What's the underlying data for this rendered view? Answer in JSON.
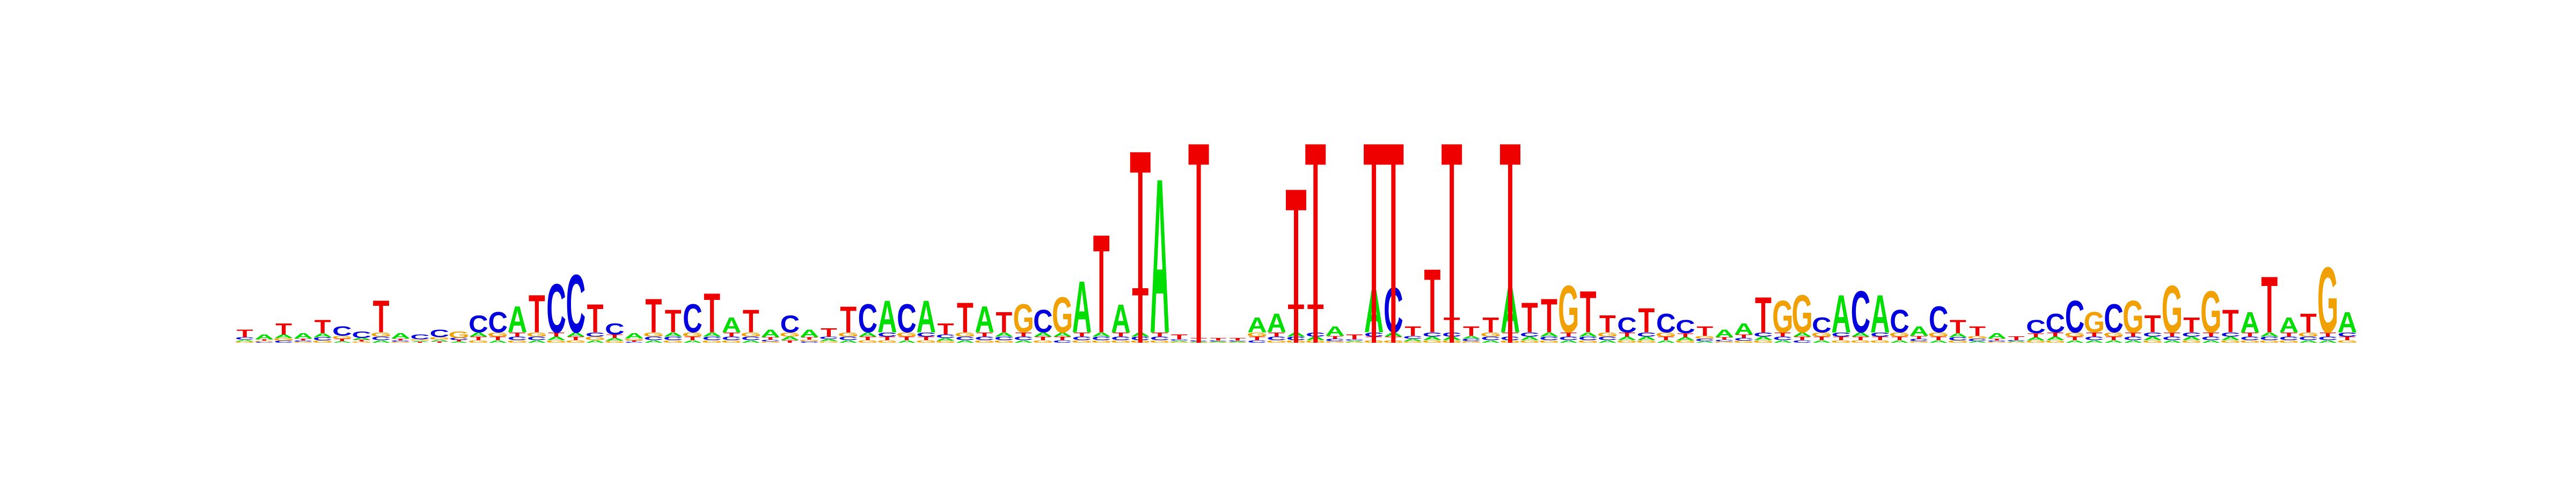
{
  "figure": {
    "type": "sequence-logo",
    "alphabet": [
      "A",
      "C",
      "G",
      "T"
    ],
    "colors": {
      "A": "#00dd00",
      "C": "#0000dd",
      "G": "#f0a000",
      "T": "#ee0000"
    },
    "lollipop_color": "#ee0000",
    "title": "",
    "xlabel": "",
    "ylabel": ""
  },
  "logo": {
    "positions": [
      {
        "bases": "GATC",
        "dominant": "T",
        "height": 0.08
      },
      {
        "bases": "ACGT",
        "dominant": "A",
        "height": 0.05
      },
      {
        "bases": "CGTA",
        "dominant": "T",
        "height": 0.12
      },
      {
        "bases": "AGCT",
        "dominant": "A",
        "height": 0.06
      },
      {
        "bases": "GCAT",
        "dominant": "T",
        "height": 0.14
      },
      {
        "bases": "ATGC",
        "dominant": "C",
        "height": 0.1
      },
      {
        "bases": "GTAC",
        "dominant": "C",
        "height": 0.07
      },
      {
        "bases": "ACGT",
        "dominant": "T",
        "height": 0.34
      },
      {
        "bases": "GACT",
        "dominant": "A",
        "height": 0.06
      },
      {
        "bases": "CTAG",
        "dominant": "C",
        "height": 0.05
      },
      {
        "bases": "TAGC",
        "dominant": "C",
        "height": 0.08
      },
      {
        "bases": "ATCG",
        "dominant": "G",
        "height": 0.07
      },
      {
        "bases": "GTAC",
        "dominant": "C",
        "height": 0.18
      },
      {
        "bases": "ATGC",
        "dominant": "C",
        "height": 0.22
      },
      {
        "bases": "GACT",
        "dominant": "A",
        "height": 0.28
      },
      {
        "bases": "ACGT",
        "dominant": "T",
        "height": 0.4
      },
      {
        "bases": "GATC",
        "dominant": "C",
        "height": 0.52
      },
      {
        "bases": "GTAC",
        "dominant": "C",
        "height": 0.62
      },
      {
        "bases": "ATGC",
        "dominant": "T",
        "height": 0.3
      },
      {
        "bases": "GACT",
        "dominant": "C",
        "height": 0.12
      },
      {
        "bases": "CTGA",
        "dominant": "A",
        "height": 0.06
      },
      {
        "bases": "ACGT",
        "dominant": "T",
        "height": 0.36
      },
      {
        "bases": "GCAT",
        "dominant": "T",
        "height": 0.24
      },
      {
        "bases": "ATGC",
        "dominant": "C",
        "height": 0.3
      },
      {
        "bases": "GCAT",
        "dominant": "T",
        "height": 0.42
      },
      {
        "bases": "GACT",
        "dominant": "A",
        "height": 0.16
      },
      {
        "bases": "ACGT",
        "dominant": "T",
        "height": 0.24
      },
      {
        "bases": "GCTA",
        "dominant": "A",
        "height": 0.08
      },
      {
        "bases": "TAGC",
        "dominant": "C",
        "height": 0.18
      },
      {
        "bases": "ACGT",
        "dominant": "A",
        "height": 0.08
      },
      {
        "bases": "GACT",
        "dominant": "T",
        "height": 0.09
      },
      {
        "bases": "ACGT",
        "dominant": "T",
        "height": 0.28
      },
      {
        "bases": "GTAC",
        "dominant": "C",
        "height": 0.3
      },
      {
        "bases": "GTCA",
        "dominant": "A",
        "height": 0.34
      },
      {
        "bases": "ATGC",
        "dominant": "C",
        "height": 0.3
      },
      {
        "bases": "GTCA",
        "dominant": "A",
        "height": 0.34
      },
      {
        "bases": "GACT",
        "dominant": "T",
        "height": 0.12
      },
      {
        "bases": "ACGT",
        "dominant": "T",
        "height": 0.32
      },
      {
        "bases": "GCTA",
        "dominant": "A",
        "height": 0.28
      },
      {
        "bases": "GCAT",
        "dominant": "T",
        "height": 0.22
      },
      {
        "bases": "AGCT",
        "dominant": "G",
        "height": 0.3
      },
      {
        "bases": "GTAC",
        "dominant": "C",
        "height": 0.24
      },
      {
        "bases": "CTGA",
        "dominant": "G",
        "height": 0.38
      },
      {
        "bases": "GCTA",
        "dominant": "A",
        "height": 0.55
      },
      {
        "bases": "GCAT",
        "dominant": "T",
        "height": 1.05
      },
      {
        "bases": "GCTA",
        "dominant": "A",
        "height": 0.3
      },
      {
        "bases": "GCAT",
        "dominant": "T",
        "height": 0.48
      },
      {
        "bases": "GCTA",
        "dominant": "A",
        "height": 1.65
      },
      {
        "bases": "GACT",
        "dominant": "T",
        "height": 0.05
      },
      {
        "bases": "GACT",
        "dominant": "T",
        "height": 0.03
      },
      {
        "bases": "GACT",
        "dominant": "T",
        "height": 0.03
      },
      {
        "bases": "GACT",
        "dominant": "T",
        "height": 0.03
      },
      {
        "bases": "CTGA",
        "dominant": "A",
        "height": 0.16
      },
      {
        "bases": "GCTA",
        "dominant": "A",
        "height": 0.2
      },
      {
        "bases": "GCAT",
        "dominant": "T",
        "height": 0.3
      },
      {
        "bases": "GACT",
        "dominant": "T",
        "height": 0.3
      },
      {
        "bases": "GCTA",
        "dominant": "A",
        "height": 0.1
      },
      {
        "bases": "GACT",
        "dominant": "T",
        "height": 0.05
      },
      {
        "bases": "GTCA",
        "dominant": "A",
        "height": 0.46
      },
      {
        "bases": "GTAC",
        "dominant": "C",
        "height": 0.48
      },
      {
        "bases": "GACT",
        "dominant": "T",
        "height": 0.1
      },
      {
        "bases": "GACT",
        "dominant": "T",
        "height": 0.68
      },
      {
        "bases": "GACT",
        "dominant": "T",
        "height": 0.16
      },
      {
        "bases": "GCAT",
        "dominant": "T",
        "height": 0.1
      },
      {
        "bases": "ACGT",
        "dominant": "T",
        "height": 0.16
      },
      {
        "bases": "GCTA",
        "dominant": "A",
        "height": 0.48
      },
      {
        "bases": "GACT",
        "dominant": "T",
        "height": 0.32
      },
      {
        "bases": "GCAT",
        "dominant": "T",
        "height": 0.36
      },
      {
        "bases": "ACTG",
        "dominant": "G",
        "height": 0.5
      },
      {
        "bases": "GCAT",
        "dominant": "T",
        "height": 0.44
      },
      {
        "bases": "ACGT",
        "dominant": "T",
        "height": 0.18
      },
      {
        "bases": "GATC",
        "dominant": "C",
        "height": 0.16
      },
      {
        "bases": "GACT",
        "dominant": "T",
        "height": 0.26
      },
      {
        "bases": "ATGC",
        "dominant": "C",
        "height": 0.2
      },
      {
        "bases": "GATC",
        "dominant": "C",
        "height": 0.14
      },
      {
        "bases": "ACGT",
        "dominant": "T",
        "height": 0.1
      },
      {
        "bases": "GCTA",
        "dominant": "A",
        "height": 0.08
      },
      {
        "bases": "GCTA",
        "dominant": "A",
        "height": 0.12
      },
      {
        "bases": "GACT",
        "dominant": "T",
        "height": 0.38
      },
      {
        "bases": "ACTG",
        "dominant": "G",
        "height": 0.34
      },
      {
        "bases": "CTAG",
        "dominant": "G",
        "height": 0.4
      },
      {
        "bases": "ATGC",
        "dominant": "C",
        "height": 0.16
      },
      {
        "bases": "GTCA",
        "dominant": "A",
        "height": 0.4
      },
      {
        "bases": "GTAC",
        "dominant": "C",
        "height": 0.44
      },
      {
        "bases": "GTCA",
        "dominant": "A",
        "height": 0.4
      },
      {
        "bases": "ATGC",
        "dominant": "C",
        "height": 0.24
      },
      {
        "bases": "GCTA",
        "dominant": "A",
        "height": 0.1
      },
      {
        "bases": "ATGC",
        "dominant": "C",
        "height": 0.28
      },
      {
        "bases": "GCAT",
        "dominant": "T",
        "height": 0.14
      },
      {
        "bases": "ACGT",
        "dominant": "T",
        "height": 0.1
      },
      {
        "bases": "GCTA",
        "dominant": "A",
        "height": 0.06
      },
      {
        "bases": "GACT",
        "dominant": "T",
        "height": 0.04
      },
      {
        "bases": "GATC",
        "dominant": "C",
        "height": 0.14
      },
      {
        "bases": "GATC",
        "dominant": "C",
        "height": 0.2
      },
      {
        "bases": "ATGC",
        "dominant": "C",
        "height": 0.34
      },
      {
        "bases": "ACTG",
        "dominant": "G",
        "height": 0.22
      },
      {
        "bases": "ATGC",
        "dominant": "C",
        "height": 0.3
      },
      {
        "bases": "AGCT",
        "dominant": "G",
        "height": 0.34
      },
      {
        "bases": "GACT",
        "dominant": "T",
        "height": 0.18
      },
      {
        "bases": "ACTG",
        "dominant": "G",
        "height": 0.5
      },
      {
        "bases": "GACT",
        "dominant": "T",
        "height": 0.16
      },
      {
        "bases": "ACTG",
        "dominant": "G",
        "height": 0.44
      },
      {
        "bases": "GACT",
        "dominant": "T",
        "height": 0.24
      },
      {
        "bases": "GCTA",
        "dominant": "A",
        "height": 0.22
      },
      {
        "bases": "GCAT",
        "dominant": "T",
        "height": 0.6
      },
      {
        "bases": "GCTA",
        "dominant": "A",
        "height": 0.16
      },
      {
        "bases": "ACGT",
        "dominant": "T",
        "height": 0.2
      },
      {
        "bases": "ACTG",
        "dominant": "G",
        "height": 0.7
      },
      {
        "bases": "GTCA",
        "dominant": "A",
        "height": 0.22
      }
    ]
  },
  "lollipops": [
    {
      "position": 46,
      "marker": "square",
      "level": 0.91
    },
    {
      "position": 49,
      "marker": "square",
      "level": 0.95
    },
    {
      "position": 54,
      "marker": "square",
      "level": 0.72
    },
    {
      "position": 55,
      "marker": "square",
      "level": 0.95
    },
    {
      "position": 58,
      "marker": "square",
      "level": 0.95
    },
    {
      "position": 59,
      "marker": "square",
      "level": 0.95
    },
    {
      "position": 62,
      "marker": "square",
      "level": 0.95
    },
    {
      "position": 65,
      "marker": "square",
      "level": 0.95
    }
  ]
}
